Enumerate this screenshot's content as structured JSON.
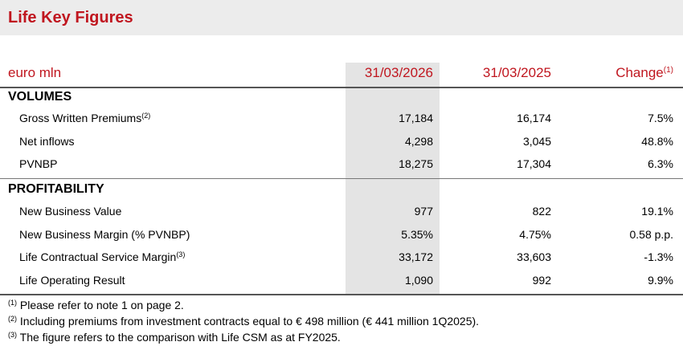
{
  "title": "Life Key Figures",
  "header": {
    "unit": "euro mln",
    "col1": "31/03/2026",
    "col2": "31/03/2025",
    "col3": "Change",
    "col3_note": "(1)"
  },
  "sections": [
    {
      "name": "VOLUMES",
      "rows": [
        {
          "label": "Gross Written Premiums",
          "note": "(2)",
          "v1": "17,184",
          "v2": "16,174",
          "v3": "7.5%"
        },
        {
          "label": "Net inflows",
          "note": "",
          "v1": "4,298",
          "v2": "3,045",
          "v3": "48.8%"
        },
        {
          "label": "PVNBP",
          "note": "",
          "v1": "18,275",
          "v2": "17,304",
          "v3": "6.3%"
        }
      ]
    },
    {
      "name": "PROFITABILITY",
      "rows": [
        {
          "label": "New Business Value",
          "note": "",
          "v1": "977",
          "v2": "822",
          "v3": "19.1%"
        },
        {
          "label": "New Business Margin (% PVNBP)",
          "note": "",
          "v1": "5.35%",
          "v2": "4.75%",
          "v3": "0.58 p.p."
        },
        {
          "label": "Life Contractual Service Margin",
          "note": "(3)",
          "v1": "33,172",
          "v2": "33,603",
          "v3": "-1.3%"
        },
        {
          "label": "Life Operating Result",
          "note": "",
          "v1": "1,090",
          "v2": "992",
          "v3": "9.9%"
        }
      ]
    }
  ],
  "footnotes": [
    {
      "mark": "(1)",
      "text": " Please refer to note 1 on page 2."
    },
    {
      "mark": "(2)",
      "text": " Including premiums from investment contracts equal to € 498 million (€ 441 million 1Q2025)."
    },
    {
      "mark": "(3)",
      "text": " The figure refers to the comparison with Life CSM as at FY2025."
    }
  ],
  "colors": {
    "accent": "#c0161f",
    "title_bg": "#ececec",
    "highlight_col": "#e4e4e4"
  }
}
